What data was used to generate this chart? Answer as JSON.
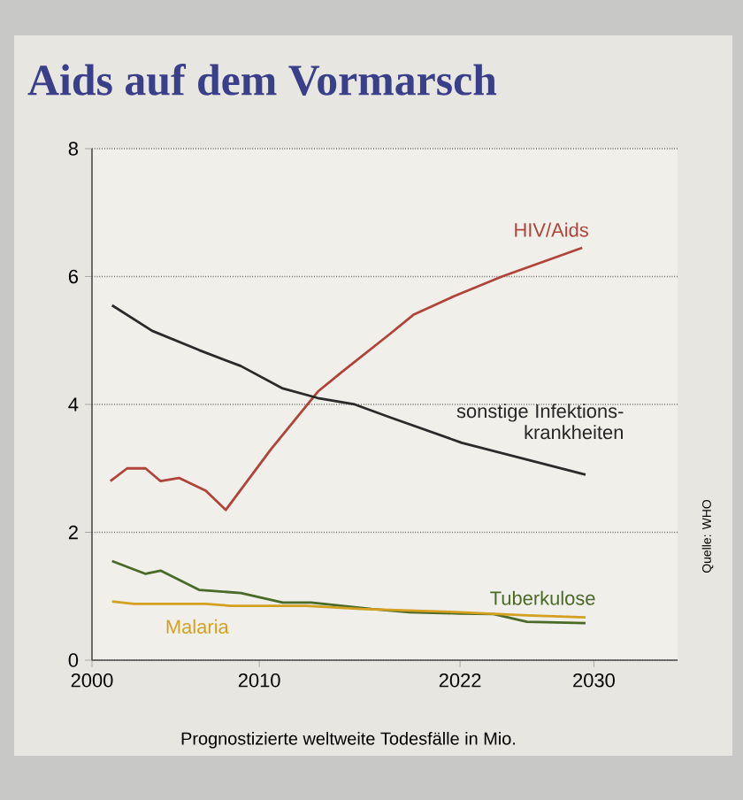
{
  "chart_data": {
    "type": "line",
    "title": "Aids auf dem Vormarsch",
    "xlabel": "Prognostizierte weltweite Todesfälle in Mio.",
    "annotations": [
      "Quelle: WHO"
    ],
    "xlim": [
      2000,
      2035
    ],
    "ylim": [
      0,
      8
    ],
    "xticks": [
      2000,
      2010,
      2022,
      2030
    ],
    "yticks": [
      0,
      2,
      4,
      6,
      8
    ],
    "grid": "y",
    "line_style": "solid",
    "marker": "none",
    "series": [
      {
        "name": "HIV/Aids",
        "color": "#b0443a",
        "x": [
          2001.1,
          2002.1,
          2003.2,
          2004.1,
          2005.2,
          2006.8,
          2008.0,
          2010.7,
          2013.5,
          2014.9,
          2017.8,
          2019.2,
          2021.7,
          2024.5,
          2029.3
        ],
        "values": [
          2.8,
          3.0,
          3.0,
          2.8,
          2.85,
          2.65,
          2.35,
          3.3,
          4.2,
          4.5,
          5.1,
          5.4,
          5.7,
          6.0,
          6.45
        ]
      },
      {
        "name": "sonstige Infektions-krankheiten",
        "color": "#2a2a2a",
        "x": [
          2001.2,
          2003.6,
          2006.4,
          2008.9,
          2011.4,
          2013.5,
          2015.7,
          2017.8,
          2022.1,
          2029.5
        ],
        "values": [
          5.55,
          5.15,
          4.85,
          4.6,
          4.25,
          4.1,
          4.0,
          3.8,
          3.4,
          2.9
        ]
      },
      {
        "name": "Tuberkulose",
        "color": "#4a6a28",
        "x": [
          2001.2,
          2003.2,
          2004.1,
          2006.4,
          2008.9,
          2011.4,
          2013.1,
          2016.7,
          2019.0,
          2022.0,
          2024.0,
          2026.0,
          2029.5
        ],
        "values": [
          1.55,
          1.35,
          1.4,
          1.1,
          1.05,
          0.9,
          0.9,
          0.8,
          0.75,
          0.73,
          0.72,
          0.6,
          0.58
        ]
      },
      {
        "name": "Malaria",
        "color": "#d4a020",
        "x": [
          2001.2,
          2002.5,
          2006.8,
          2008.3,
          2012.8,
          2016.1,
          2022.0,
          2026.0,
          2029.5
        ],
        "values": [
          0.92,
          0.88,
          0.88,
          0.85,
          0.85,
          0.8,
          0.75,
          0.7,
          0.67
        ]
      }
    ]
  }
}
